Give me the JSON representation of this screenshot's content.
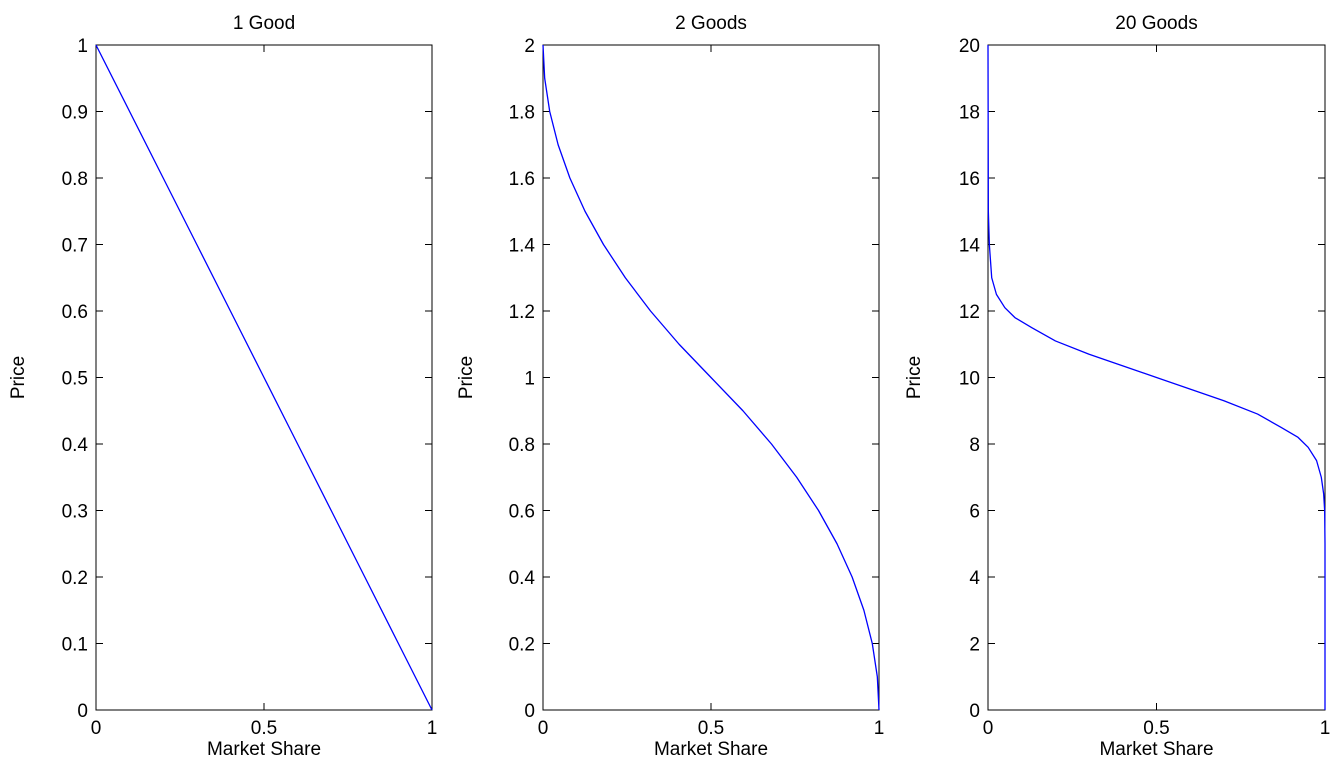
{
  "chart_data": [
    {
      "type": "line",
      "title": "1 Good",
      "xlabel": "Market Share",
      "ylabel": "Price",
      "xlim": [
        0,
        1
      ],
      "ylim": [
        0,
        1
      ],
      "xticks": [
        0,
        0.5,
        1
      ],
      "xtick_labels": [
        "0",
        "0.5",
        "1"
      ],
      "yticks": [
        0,
        0.1,
        0.2,
        0.3,
        0.4,
        0.5,
        0.6,
        0.7,
        0.8,
        0.9,
        1
      ],
      "ytick_labels": [
        "0",
        "0.1",
        "0.2",
        "0.3",
        "0.4",
        "0.5",
        "0.6",
        "0.7",
        "0.8",
        "0.9",
        "1"
      ],
      "grid": false,
      "series": [
        {
          "color": "#0000ff",
          "x": [
            0,
            0.1,
            0.2,
            0.3,
            0.4,
            0.5,
            0.6,
            0.7,
            0.8,
            0.9,
            1
          ],
          "y": [
            1,
            0.9,
            0.8,
            0.7,
            0.6,
            0.5,
            0.4,
            0.3,
            0.2,
            0.1,
            0
          ]
        }
      ]
    },
    {
      "type": "line",
      "title": "2 Goods",
      "xlabel": "Market Share",
      "ylabel": "Price",
      "xlim": [
        0,
        1
      ],
      "ylim": [
        0,
        2
      ],
      "xticks": [
        0,
        0.5,
        1
      ],
      "xtick_labels": [
        "0",
        "0.5",
        "1"
      ],
      "yticks": [
        0,
        0.2,
        0.4,
        0.6,
        0.8,
        1,
        1.2,
        1.4,
        1.6,
        1.8,
        2
      ],
      "ytick_labels": [
        "0",
        "0.2",
        "0.4",
        "0.6",
        "0.8",
        "1",
        "1.2",
        "1.4",
        "1.6",
        "1.8",
        "2"
      ],
      "grid": false,
      "series": [
        {
          "color": "#0000ff",
          "x": [
            0,
            0.005,
            0.02,
            0.045,
            0.08,
            0.125,
            0.18,
            0.245,
            0.32,
            0.405,
            0.5,
            0.595,
            0.68,
            0.755,
            0.82,
            0.875,
            0.92,
            0.955,
            0.98,
            0.995,
            1
          ],
          "y": [
            2,
            1.9,
            1.8,
            1.7,
            1.6,
            1.5,
            1.4,
            1.3,
            1.2,
            1.1,
            1,
            0.9,
            0.8,
            0.7,
            0.6,
            0.5,
            0.4,
            0.3,
            0.2,
            0.1,
            0
          ]
        }
      ]
    },
    {
      "type": "line",
      "title": "20 Goods",
      "xlabel": "Market Share",
      "ylabel": "Price",
      "xlim": [
        0,
        1
      ],
      "ylim": [
        0,
        20
      ],
      "xticks": [
        0,
        0.5,
        1
      ],
      "xtick_labels": [
        "0",
        "0.5",
        "1"
      ],
      "yticks": [
        0,
        2,
        4,
        6,
        8,
        10,
        12,
        14,
        16,
        18,
        20
      ],
      "ytick_labels": [
        "0",
        "2",
        "4",
        "6",
        "8",
        "10",
        "12",
        "14",
        "16",
        "18",
        "20"
      ],
      "grid": false,
      "series": [
        {
          "color": "#0000ff",
          "x": [
            0,
            0.001,
            0.004,
            0.011,
            0.025,
            0.05,
            0.08,
            0.13,
            0.2,
            0.3,
            0.4,
            0.5,
            0.6,
            0.7,
            0.8,
            0.87,
            0.92,
            0.95,
            0.975,
            0.989,
            0.996,
            0.999,
            1,
            1
          ],
          "y": [
            20,
            15,
            14,
            13,
            12.5,
            12.1,
            11.8,
            11.5,
            11.1,
            10.7,
            10.35,
            10,
            9.65,
            9.3,
            8.9,
            8.5,
            8.2,
            7.9,
            7.5,
            7,
            6.5,
            6,
            5,
            0
          ]
        }
      ]
    }
  ]
}
